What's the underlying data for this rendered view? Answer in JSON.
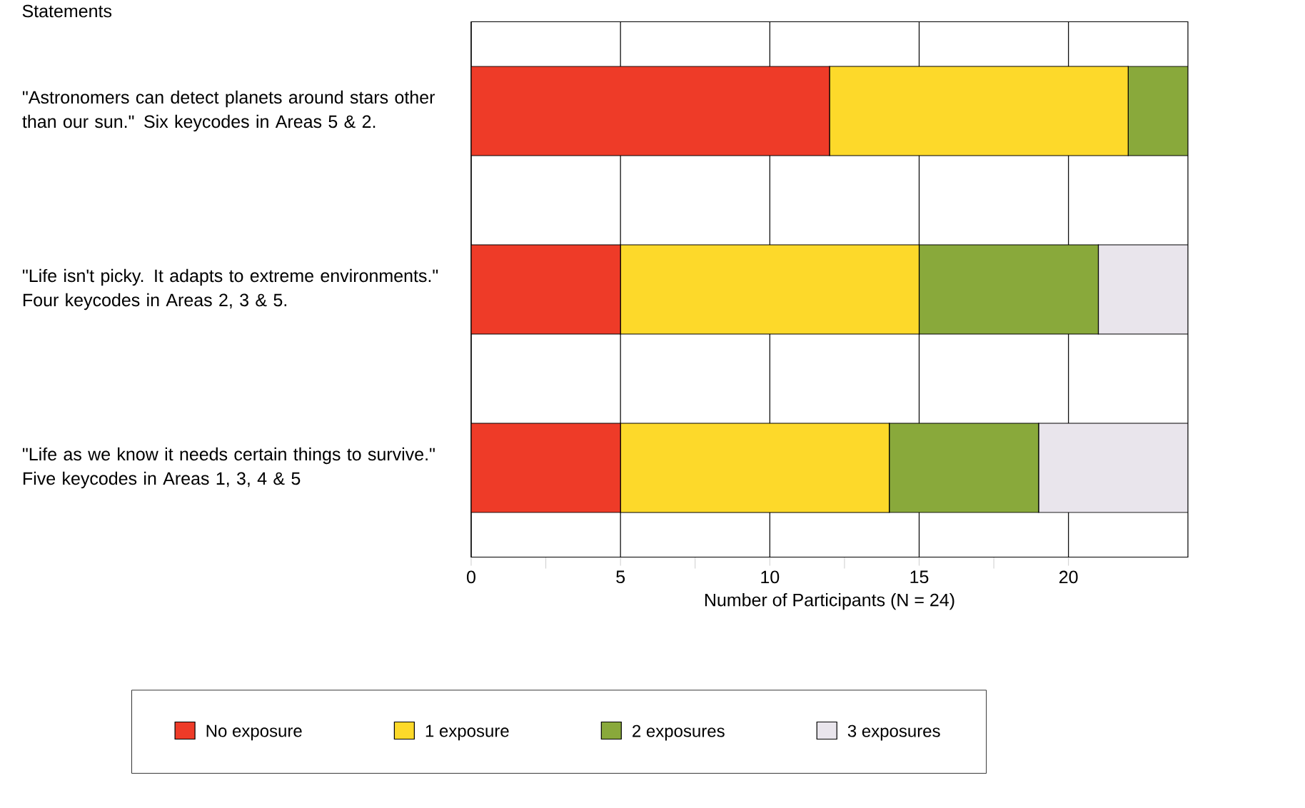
{
  "chart_data": {
    "type": "bar",
    "orientation": "horizontal",
    "stacked": true,
    "ylabel": "Statements",
    "xlabel": "Number of Participants (N = 24)",
    "categories": [
      "\"Astronomers can detect planets around stars other than our sun.\" Six keycodes in Areas 5 & 2.",
      "\"Life isn't picky. It adapts to extreme environments.\" Four keycodes in Areas 2, 3 & 5.",
      "\"Life as we know it needs certain things to survive.\" Five keycodes in Areas 1, 3, 4 & 5"
    ],
    "series": [
      {
        "name": "No exposure",
        "color": "#ee3b28",
        "values": [
          12,
          5,
          5
        ]
      },
      {
        "name": "1 exposure",
        "color": "#fdd92a",
        "values": [
          10,
          10,
          9
        ]
      },
      {
        "name": "2 exposures",
        "color": "#89a93b",
        "values": [
          2,
          6,
          5
        ]
      },
      {
        "name": "3 exposures",
        "color": "#e9e5ec",
        "values": [
          0,
          3,
          5
        ]
      }
    ],
    "xlim": [
      0,
      24
    ],
    "xticks": [
      0,
      5,
      10,
      15,
      20
    ],
    "grid": "x",
    "legend": "bottom"
  }
}
